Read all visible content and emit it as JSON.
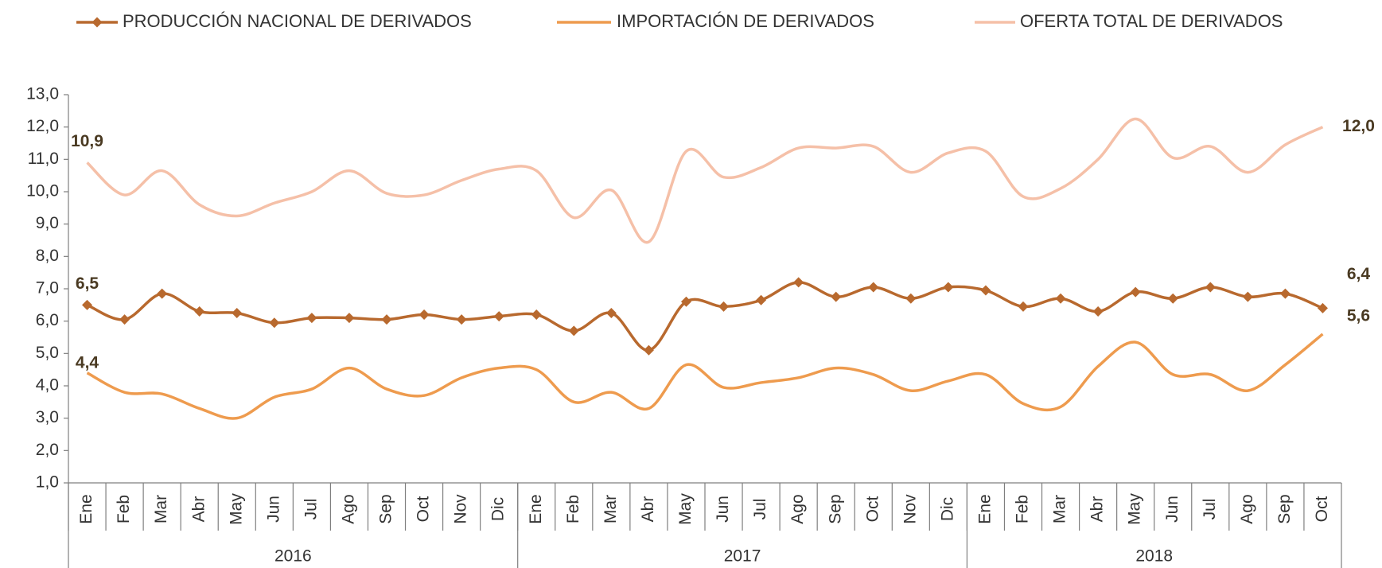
{
  "chart_data": {
    "type": "line",
    "categories": [
      "Ene",
      "Feb",
      "Mar",
      "Abr",
      "May",
      "Jun",
      "Jul",
      "Ago",
      "Sep",
      "Oct",
      "Nov",
      "Dic",
      "Ene",
      "Feb",
      "Mar",
      "Abr",
      "May",
      "Jun",
      "Jul",
      "Ago",
      "Sep",
      "Oct",
      "Nov",
      "Dic",
      "Ene",
      "Feb",
      "Mar",
      "Abr",
      "May",
      "Jun",
      "Jul",
      "Ago",
      "Sep",
      "Oct"
    ],
    "groups": [
      "2016",
      "2017",
      "2018"
    ],
    "ylim": [
      1,
      13
    ],
    "yticks": [
      {
        "value": 1,
        "label": "1,0"
      },
      {
        "value": 2,
        "label": "2,0"
      },
      {
        "value": 3,
        "label": "3,0"
      },
      {
        "value": 4,
        "label": "4,0"
      },
      {
        "value": 5,
        "label": "5,0"
      },
      {
        "value": 6,
        "label": "6,0"
      },
      {
        "value": 7,
        "label": "7,0"
      },
      {
        "value": 8,
        "label": "8,0"
      },
      {
        "value": 9,
        "label": "9,0"
      },
      {
        "value": 10,
        "label": "10,0"
      },
      {
        "value": 11,
        "label": "11,0"
      },
      {
        "value": 12,
        "label": "12,0"
      },
      {
        "value": 13,
        "label": "13,0"
      }
    ],
    "grid": false,
    "legend": "top",
    "series": [
      {
        "name": "PRODUCCIÓN NACIONAL DE DERIVADOS",
        "color": "#b8692e",
        "marker": "diamond",
        "values": [
          6.5,
          6.05,
          6.85,
          6.3,
          6.25,
          5.95,
          6.1,
          6.1,
          6.05,
          6.2,
          6.05,
          6.15,
          6.2,
          5.7,
          6.25,
          5.1,
          6.6,
          6.45,
          6.65,
          7.2,
          6.75,
          7.05,
          6.7,
          7.05,
          6.95,
          6.45,
          6.7,
          6.3,
          6.9,
          6.7,
          7.05,
          6.75,
          6.85,
          6.4
        ],
        "value_labels": [
          "6,5",
          null,
          null,
          null,
          null,
          null,
          null,
          null,
          null,
          null,
          null,
          null,
          null,
          null,
          null,
          null,
          null,
          null,
          null,
          null,
          null,
          null,
          null,
          null,
          null,
          null,
          null,
          null,
          null,
          null,
          null,
          null,
          null,
          "6,4"
        ]
      },
      {
        "name": "IMPORTACIÓN DE DERIVADOS",
        "color": "#ee9b4e",
        "values": [
          4.4,
          3.8,
          3.75,
          3.3,
          3.0,
          3.65,
          3.9,
          4.55,
          3.9,
          3.7,
          4.25,
          4.55,
          4.5,
          3.5,
          3.8,
          3.3,
          4.65,
          3.95,
          4.1,
          4.25,
          4.55,
          4.35,
          3.85,
          4.15,
          4.35,
          3.45,
          3.35,
          4.6,
          5.35,
          4.35,
          4.35,
          3.85,
          4.65,
          5.6
        ],
        "value_labels": [
          "4,4",
          null,
          null,
          null,
          null,
          null,
          null,
          null,
          null,
          null,
          null,
          null,
          null,
          null,
          null,
          null,
          null,
          null,
          null,
          null,
          null,
          null,
          null,
          null,
          null,
          null,
          null,
          null,
          null,
          null,
          null,
          null,
          null,
          "5,6"
        ]
      },
      {
        "name": "OFERTA TOTAL DE DERIVADOS",
        "color": "#f5c0a8",
        "values": [
          10.9,
          9.9,
          10.65,
          9.6,
          9.25,
          9.65,
          10.0,
          10.65,
          9.95,
          9.9,
          10.35,
          10.7,
          10.65,
          9.2,
          10.05,
          8.45,
          11.25,
          10.45,
          10.75,
          11.35,
          11.35,
          11.4,
          10.6,
          11.2,
          11.25,
          9.85,
          10.1,
          11.0,
          12.25,
          11.05,
          11.4,
          10.6,
          11.45,
          12.0
        ],
        "value_labels": [
          "10,9",
          null,
          null,
          null,
          null,
          null,
          null,
          null,
          null,
          null,
          null,
          null,
          null,
          null,
          null,
          null,
          null,
          null,
          null,
          null,
          null,
          null,
          null,
          null,
          null,
          null,
          null,
          null,
          null,
          null,
          null,
          null,
          null,
          "12,0"
        ]
      }
    ]
  }
}
